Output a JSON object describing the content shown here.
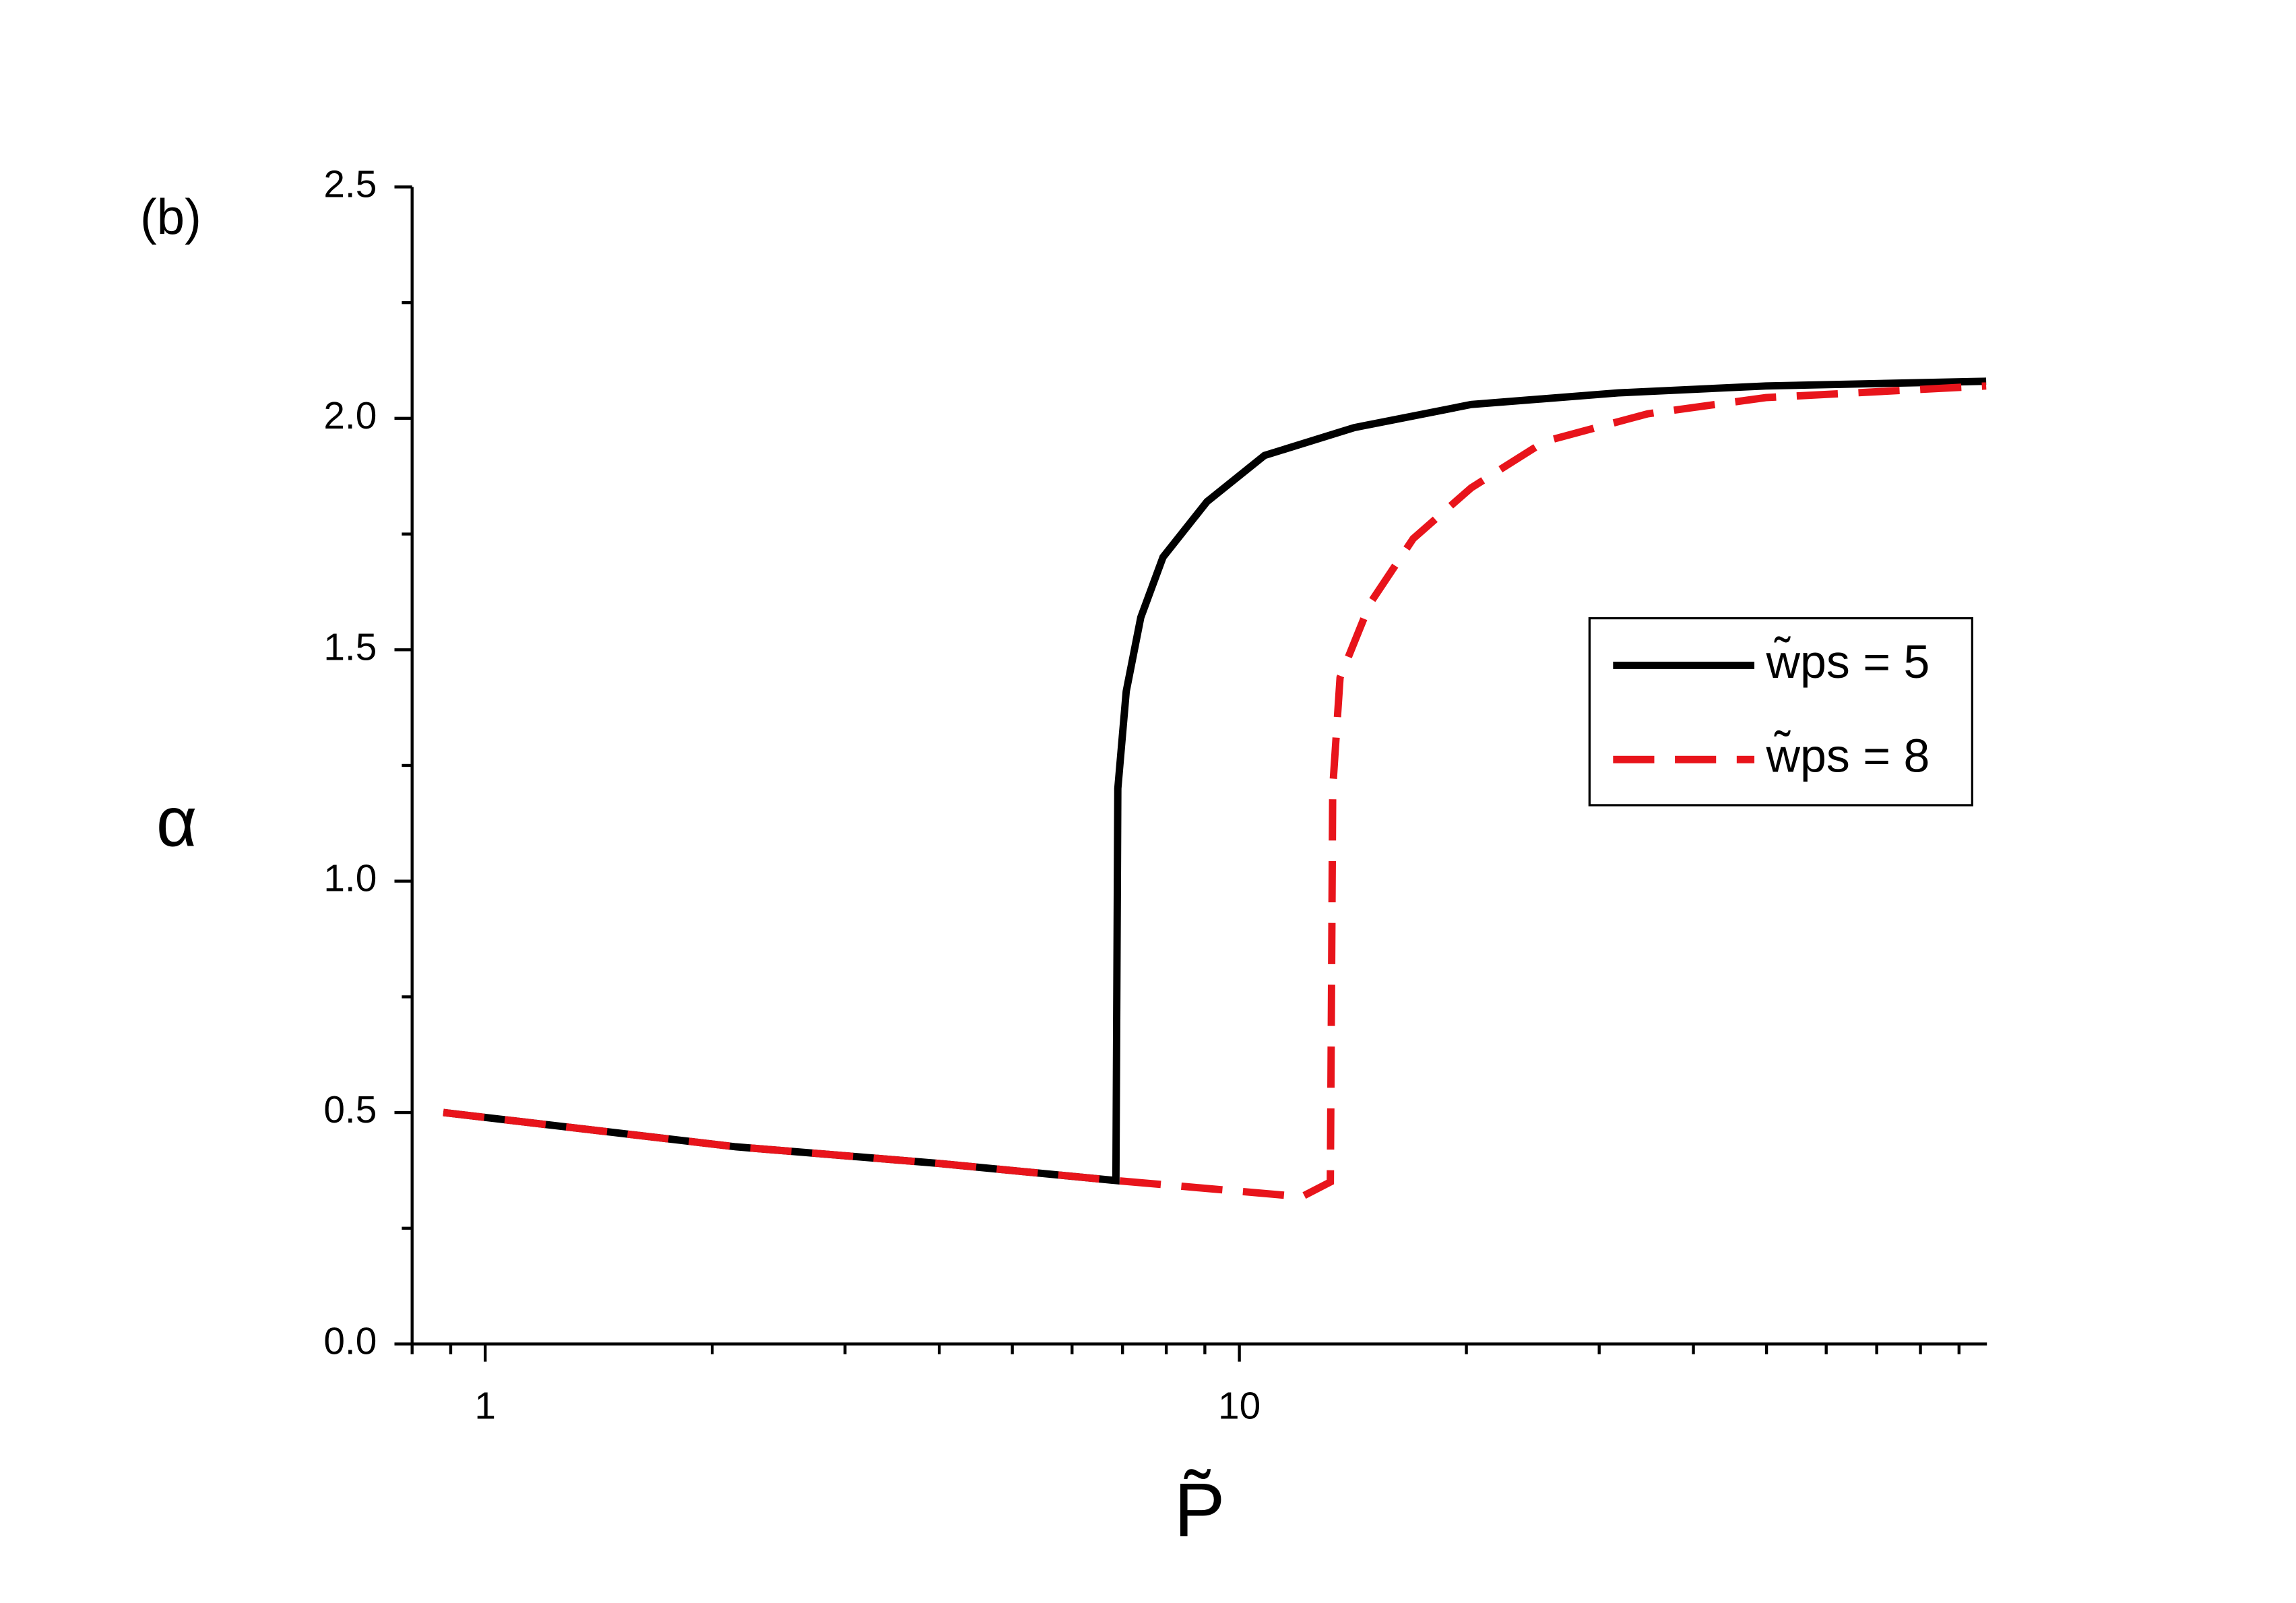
{
  "chart_data": {
    "type": "line",
    "annotation": "(b)",
    "xlabel": "P̃",
    "ylabel": "α",
    "xscale": "log",
    "xlim": [
      0.8,
      98
    ],
    "ylim": [
      0,
      2.5
    ],
    "xticks": [
      1,
      10
    ],
    "xminorticks": [
      0.8,
      0.9,
      2,
      3,
      4,
      5,
      6,
      7,
      8,
      9,
      20,
      30,
      40,
      50,
      60,
      70,
      80,
      90
    ],
    "yticks": [
      {
        "value": 0,
        "label": "0.0"
      },
      0.5,
      {
        "value": 1,
        "label": "1.0"
      },
      1.5,
      {
        "value": 2,
        "label": "2.0"
      },
      2.5
    ],
    "yminorticks": [
      0.25,
      0.75,
      1.25,
      1.75,
      2.25
    ],
    "legend": "center right",
    "series": [
      {
        "name": "w̃ps = 5",
        "color": "#000000",
        "dash": "solid",
        "x": [
          0.88,
          2.15,
          4,
          6.86,
          6.9,
          7.08,
          7.4,
          7.92,
          9.06,
          10.8,
          14.2,
          20.3,
          31.8,
          49.9,
          97.8
        ],
        "values": [
          0.5,
          0.426,
          0.39,
          0.353,
          1.2,
          1.41,
          1.57,
          1.7,
          1.82,
          1.92,
          1.98,
          2.03,
          2.055,
          2.07,
          2.08
        ]
      },
      {
        "name": "w̃ps = 8",
        "color": "#e8141b",
        "dash": "dashed",
        "x": [
          0.88,
          2.15,
          4,
          6.86,
          12.1,
          13.2,
          13.3,
          13.6,
          14.9,
          17,
          20.3,
          25.4,
          34.8,
          49.9,
          97.8
        ],
        "values": [
          0.5,
          0.426,
          0.39,
          0.353,
          0.318,
          0.35,
          1.2,
          1.44,
          1.6,
          1.74,
          1.85,
          1.95,
          2.01,
          2.045,
          2.07
        ]
      }
    ]
  }
}
